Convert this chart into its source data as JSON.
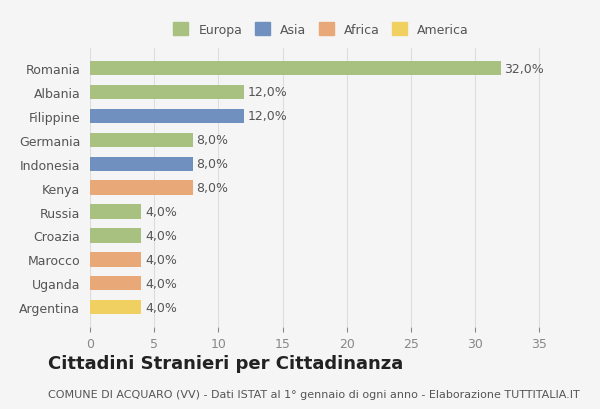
{
  "countries": [
    "Romania",
    "Albania",
    "Filippine",
    "Germania",
    "Indonesia",
    "Kenya",
    "Russia",
    "Croazia",
    "Marocco",
    "Uganda",
    "Argentina"
  ],
  "values": [
    32.0,
    12.0,
    12.0,
    8.0,
    8.0,
    8.0,
    4.0,
    4.0,
    4.0,
    4.0,
    4.0
  ],
  "continents": [
    "Europa",
    "Europa",
    "Asia",
    "Europa",
    "Asia",
    "Africa",
    "Europa",
    "Europa",
    "Africa",
    "Africa",
    "America"
  ],
  "colors": {
    "Europa": "#a8c080",
    "Asia": "#7090c0",
    "Africa": "#e8a878",
    "America": "#f0d060"
  },
  "legend_order": [
    "Europa",
    "Asia",
    "Africa",
    "America"
  ],
  "title": "Cittadini Stranieri per Cittadinanza",
  "subtitle": "COMUNE DI ACQUARO (VV) - Dati ISTAT al 1° gennaio di ogni anno - Elaborazione TUTTITALIA.IT",
  "xlim": [
    0,
    36
  ],
  "xticks": [
    0,
    5,
    10,
    15,
    20,
    25,
    30,
    35
  ],
  "bg_color": "#f5f5f5",
  "bar_bg_color": "#ffffff",
  "label_fontsize": 9,
  "title_fontsize": 13,
  "subtitle_fontsize": 8
}
